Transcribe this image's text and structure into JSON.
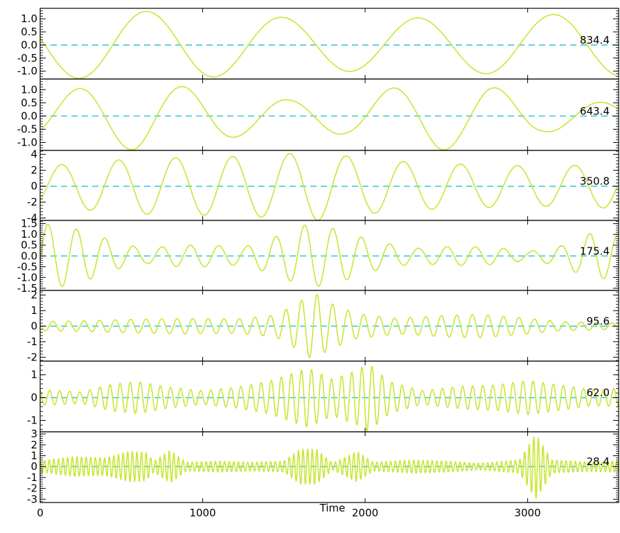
{
  "chart_data": {
    "type": "line",
    "xlabel": "Time",
    "xlim": [
      0,
      3560
    ],
    "xticks": [
      0,
      1000,
      2000,
      3000
    ],
    "colors": {
      "signal": "#c8e636",
      "zero_line": "#3fc8d8",
      "axes": "#000000",
      "background": "#ffffff"
    },
    "panels": [
      {
        "period": "834.4",
        "ylim": [
          -1.3,
          1.4
        ],
        "yticks": [
          1.0,
          0.5,
          0.0,
          -0.5,
          -1.0
        ],
        "ytick_labels": [
          "1.0",
          "0.5",
          "0.0",
          "-0.5",
          "-1.0"
        ],
        "signal": {
          "period": 834.4,
          "envelope": [
            [
              0,
              1.25
            ],
            [
              500,
              1.3
            ],
            [
              1000,
              1.25
            ],
            [
              1500,
              1.05
            ],
            [
              2000,
              1.0
            ],
            [
              2500,
              1.05
            ],
            [
              3000,
              1.15
            ],
            [
              3560,
              1.2
            ]
          ],
          "phase": 1.35
        }
      },
      {
        "period": "643.4",
        "ylim": [
          -1.3,
          1.4
        ],
        "yticks": [
          1.0,
          0.5,
          0.0,
          -0.5,
          -1.0
        ],
        "ytick_labels": [
          "1.0",
          "0.5",
          "0.0",
          "-0.5",
          "-1.0"
        ],
        "signal": {
          "period": 643.4,
          "envelope": [
            [
              0,
              0.8
            ],
            [
              300,
              1.1
            ],
            [
              600,
              1.3
            ],
            [
              900,
              1.1
            ],
            [
              1250,
              0.75
            ],
            [
              1550,
              0.6
            ],
            [
              1900,
              0.7
            ],
            [
              2200,
              1.1
            ],
            [
              2450,
              1.3
            ],
            [
              2750,
              1.15
            ],
            [
              3100,
              0.6
            ],
            [
              3560,
              0.5
            ]
          ],
          "phase": 3.98
        }
      },
      {
        "period": "350.8",
        "ylim": [
          -4.3,
          4.5
        ],
        "yticks": [
          4,
          2,
          0,
          -2,
          -4
        ],
        "ytick_labels": [
          "4",
          "2",
          "0",
          "-2",
          "-4"
        ],
        "signal": {
          "period": 350.8,
          "envelope": [
            [
              0,
              2.5
            ],
            [
              300,
              3.0
            ],
            [
              600,
              3.5
            ],
            [
              900,
              3.6
            ],
            [
              1300,
              3.8
            ],
            [
              1700,
              4.3
            ],
            [
              2000,
              3.5
            ],
            [
              2300,
              3.0
            ],
            [
              2700,
              2.7
            ],
            [
              3100,
              2.5
            ],
            [
              3560,
              2.8
            ]
          ],
          "phase": 3.93
        }
      },
      {
        "period": "175.4",
        "ylim": [
          -1.6,
          1.65
        ],
        "yticks": [
          1.5,
          1.0,
          0.5,
          0.0,
          -0.5,
          -1.0,
          -1.5
        ],
        "ytick_labels": [
          "1.5",
          "1.0",
          "0.5",
          "0.0",
          "-0.5",
          "-1.0",
          "-1.5"
        ],
        "signal": {
          "period": 175.4,
          "envelope": [
            [
              0,
              1.5
            ],
            [
              150,
              1.4
            ],
            [
              300,
              1.1
            ],
            [
              500,
              0.55
            ],
            [
              650,
              0.35
            ],
            [
              850,
              0.5
            ],
            [
              1050,
              0.5
            ],
            [
              1250,
              0.4
            ],
            [
              1450,
              0.9
            ],
            [
              1650,
              1.5
            ],
            [
              1850,
              1.2
            ],
            [
              2050,
              0.7
            ],
            [
              2300,
              0.35
            ],
            [
              2550,
              0.45
            ],
            [
              2800,
              0.4
            ],
            [
              3000,
              0.2
            ],
            [
              3200,
              0.45
            ],
            [
              3400,
              1.1
            ],
            [
              3560,
              1.0
            ]
          ],
          "phase": 4.57
        }
      },
      {
        "period": "95.6",
        "ylim": [
          -2.25,
          2.3
        ],
        "yticks": [
          2,
          1,
          0,
          -1,
          -2
        ],
        "ytick_labels": [
          "2",
          "1",
          "0",
          "-1",
          "-2"
        ],
        "signal": {
          "period": 95.6,
          "envelope": [
            [
              0,
              0.3
            ],
            [
              300,
              0.35
            ],
            [
              600,
              0.45
            ],
            [
              900,
              0.5
            ],
            [
              1200,
              0.45
            ],
            [
              1450,
              0.7
            ],
            [
              1600,
              1.6
            ],
            [
              1680,
              2.2
            ],
            [
              1780,
              1.5
            ],
            [
              1950,
              0.8
            ],
            [
              2200,
              0.5
            ],
            [
              2500,
              0.7
            ],
            [
              2700,
              0.75
            ],
            [
              2950,
              0.55
            ],
            [
              3200,
              0.3
            ],
            [
              3560,
              0.2
            ]
          ],
          "phase": 1.1
        }
      },
      {
        "period": "62.0",
        "ylim": [
          -1.5,
          1.6
        ],
        "yticks": [
          1,
          0,
          -1
        ],
        "ytick_labels": [
          "1",
          "0",
          "-1"
        ],
        "signal": {
          "period": 62.0,
          "envelope": [
            [
              0,
              0.35
            ],
            [
              250,
              0.25
            ],
            [
              450,
              0.6
            ],
            [
              600,
              0.7
            ],
            [
              800,
              0.45
            ],
            [
              1000,
              0.3
            ],
            [
              1200,
              0.45
            ],
            [
              1400,
              0.7
            ],
            [
              1650,
              1.3
            ],
            [
              1800,
              0.8
            ],
            [
              1950,
              1.2
            ],
            [
              2020,
              1.5
            ],
            [
              2150,
              0.7
            ],
            [
              2350,
              0.3
            ],
            [
              2600,
              0.5
            ],
            [
              2800,
              0.55
            ],
            [
              3000,
              0.75
            ],
            [
              3200,
              0.55
            ],
            [
              3400,
              0.35
            ],
            [
              3560,
              0.4
            ]
          ],
          "phase": 0.4
        }
      },
      {
        "period": "28.4",
        "ylim": [
          -3.3,
          3.2
        ],
        "yticks": [
          3,
          2,
          1,
          0,
          -1,
          -2,
          -3
        ],
        "ytick_labels": [
          "3",
          "2",
          "1",
          "0",
          "-1",
          "-2",
          "-3"
        ],
        "signal": {
          "period": 28.4,
          "envelope": [
            [
              0,
              0.5
            ],
            [
              200,
              0.9
            ],
            [
              400,
              0.8
            ],
            [
              550,
              1.4
            ],
            [
              650,
              1.3
            ],
            [
              700,
              0.5
            ],
            [
              800,
              1.5
            ],
            [
              900,
              0.4
            ],
            [
              1100,
              0.5
            ],
            [
              1300,
              0.4
            ],
            [
              1500,
              0.5
            ],
            [
              1600,
              1.6
            ],
            [
              1700,
              1.6
            ],
            [
              1800,
              0.3
            ],
            [
              1950,
              1.4
            ],
            [
              2050,
              0.4
            ],
            [
              2300,
              0.6
            ],
            [
              2500,
              0.5
            ],
            [
              2700,
              0.3
            ],
            [
              2950,
              0.6
            ],
            [
              3050,
              3.0
            ],
            [
              3150,
              0.6
            ],
            [
              3350,
              0.45
            ],
            [
              3560,
              0.5
            ]
          ],
          "phase": 0.2
        }
      }
    ]
  }
}
